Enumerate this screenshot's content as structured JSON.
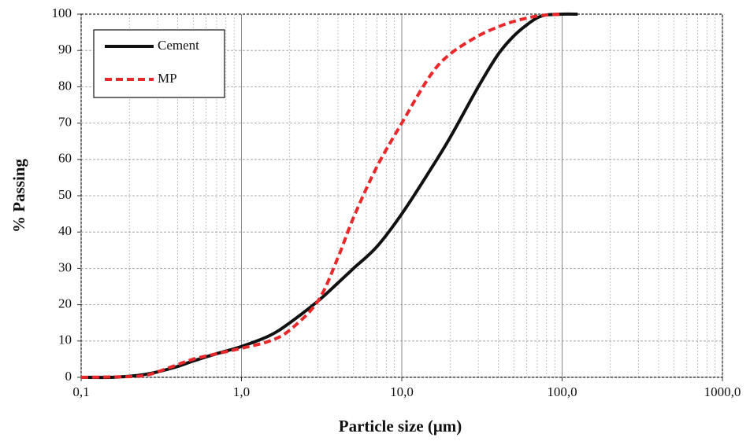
{
  "chart_data": {
    "type": "line",
    "x_label": "Particle size (μm)",
    "y_label": "% Passing",
    "log_x": true,
    "grid": true,
    "legend_position": "upper-left",
    "xlim": [
      0.1,
      1000
    ],
    "ylim": [
      0,
      100
    ],
    "xticks": [
      {
        "value": 0.1,
        "label": "0,1"
      },
      {
        "value": 1,
        "label": "1,0"
      },
      {
        "value": 10,
        "label": "10,0"
      },
      {
        "value": 100,
        "label": "100,0"
      },
      {
        "value": 1000,
        "label": "1000,0"
      }
    ],
    "yticks": [
      0,
      10,
      20,
      30,
      40,
      50,
      60,
      70,
      80,
      90,
      100
    ],
    "series": [
      {
        "name": "Cement",
        "color": "#111111",
        "dashed": false,
        "x": [
          0.1,
          0.15,
          0.2,
          0.25,
          0.3,
          0.4,
          0.5,
          0.7,
          1.0,
          1.5,
          2.0,
          3.0,
          4.0,
          5.0,
          7.0,
          10,
          15,
          20,
          30,
          40,
          50,
          60,
          70,
          80,
          100,
          125
        ],
        "values": [
          0,
          0,
          0.3,
          0.8,
          1.5,
          3,
          4.5,
          6.5,
          8.5,
          11.5,
          15,
          21,
          26,
          30,
          36,
          45,
          57,
          66,
          80,
          89,
          94,
          97,
          99,
          99.8,
          100,
          100
        ]
      },
      {
        "name": "MP",
        "color": "#e8282b",
        "dashed": true,
        "x": [
          0.1,
          0.2,
          0.25,
          0.3,
          0.4,
          0.5,
          0.7,
          1.0,
          1.5,
          2.0,
          3.0,
          4.0,
          5.0,
          7.0,
          10,
          15,
          20,
          30,
          40,
          50,
          70,
          100
        ],
        "values": [
          0,
          0.2,
          0.5,
          1.5,
          3.5,
          5,
          6.5,
          8,
          10,
          13,
          21,
          33,
          44,
          58,
          70,
          83,
          89,
          94,
          96.5,
          98,
          99.5,
          100
        ]
      }
    ]
  }
}
